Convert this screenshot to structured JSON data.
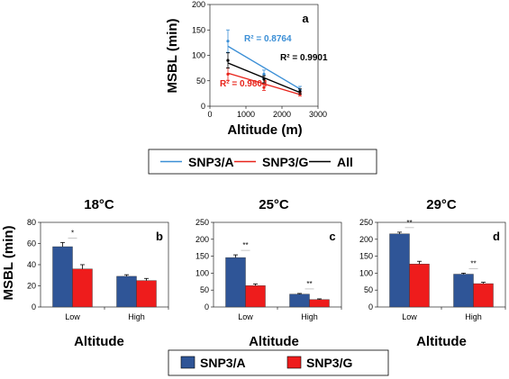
{
  "chart_data": [
    {
      "panel": "a",
      "type": "line",
      "xlabel": "Altitude (m)",
      "ylabel": "MSBL (min)",
      "xlim": [
        0,
        3000
      ],
      "ylim": [
        0,
        200
      ],
      "xticks": [
        "0",
        "1000",
        "2000",
        "3000"
      ],
      "yticks": [
        "0",
        "50",
        "100",
        "150",
        "200"
      ],
      "x": [
        500,
        1500,
        2500
      ],
      "series": [
        {
          "name": "SNP3/A",
          "color": "#3b8fd6",
          "values": [
            128,
            63,
            32
          ],
          "err": [
            22,
            8,
            7
          ],
          "fit": [
            118,
            34
          ],
          "r2_label": "R² = 0.8764"
        },
        {
          "name": "SNP3/G",
          "color": "#e8231a",
          "values": [
            63,
            37,
            24
          ],
          "err": [
            12,
            6,
            4
          ],
          "fit": [
            65,
            23
          ],
          "r2_label": "R² = 0.9804"
        },
        {
          "name": "All",
          "color": "#000000",
          "values": [
            90,
            53,
            29
          ],
          "err": [
            15,
            7,
            5
          ],
          "fit": [
            85,
            27
          ],
          "r2_label": "R² = 0.9901"
        }
      ],
      "legend": [
        "SNP3/A",
        "SNP3/G",
        "All"
      ]
    },
    {
      "panel": "b",
      "type": "bar",
      "title": "18°C",
      "xlabel": "Altitude",
      "ylabel": "MSBL (min)",
      "categories": [
        "Low",
        "High"
      ],
      "ylim": [
        0,
        80
      ],
      "yticks": [
        "0",
        "20",
        "40",
        "60",
        "80"
      ],
      "series": [
        {
          "name": "SNP3/A",
          "color": "#2f5597",
          "values": [
            57,
            29
          ],
          "err": [
            4,
            1.5
          ]
        },
        {
          "name": "SNP3/G",
          "color": "#ee1c1c",
          "values": [
            36,
            25
          ],
          "err": [
            4,
            2
          ]
        }
      ],
      "significance": [
        "*",
        ""
      ]
    },
    {
      "panel": "c",
      "type": "bar",
      "title": "25°C",
      "xlabel": "Altitude",
      "categories": [
        "Low",
        "High"
      ],
      "ylim": [
        0,
        250
      ],
      "yticks": [
        "0",
        "50",
        "100",
        "150",
        "200",
        "250"
      ],
      "series": [
        {
          "name": "SNP3/A",
          "color": "#2f5597",
          "values": [
            146,
            38
          ],
          "err": [
            8,
            2
          ]
        },
        {
          "name": "SNP3/G",
          "color": "#ee1c1c",
          "values": [
            63,
            22
          ],
          "err": [
            5,
            2
          ]
        }
      ],
      "significance": [
        "**",
        "**"
      ]
    },
    {
      "panel": "d",
      "type": "bar",
      "title": "29°C",
      "xlabel": "Altitude",
      "categories": [
        "Low",
        "High"
      ],
      "ylim": [
        0,
        250
      ],
      "yticks": [
        "0",
        "50",
        "100",
        "150",
        "200",
        "250"
      ],
      "series": [
        {
          "name": "SNP3/A",
          "color": "#2f5597",
          "values": [
            216,
            97
          ],
          "err": [
            5,
            3
          ]
        },
        {
          "name": "SNP3/G",
          "color": "#ee1c1c",
          "values": [
            127,
            69
          ],
          "err": [
            8,
            4
          ]
        }
      ],
      "significance": [
        "**",
        "**"
      ]
    }
  ],
  "bar_legend": [
    "SNP3/A",
    "SNP3/G"
  ]
}
